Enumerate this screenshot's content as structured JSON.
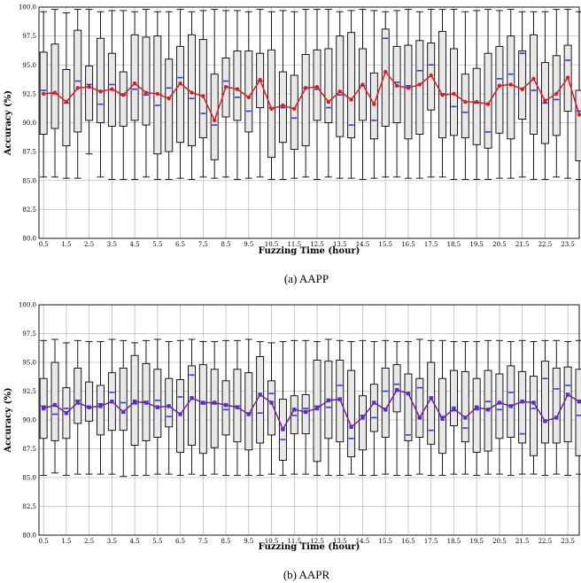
{
  "chart_data": [
    {
      "type": "box",
      "caption": "(a)  AAPP",
      "xlabel": "Fuzzing Time (hour)",
      "ylabel": "Accuracy (%)",
      "ylim": [
        80,
        100
      ],
      "yticks": [
        "80.0",
        "82.5",
        "85.0",
        "87.5",
        "90.0",
        "92.5",
        "95.0",
        "97.5",
        "100.0"
      ],
      "xtick_labels": [
        "0.5",
        "1.5",
        "2.5",
        "3.5",
        "4.5",
        "5.5",
        "6.5",
        "7.5",
        "8.5",
        "9.5",
        "10.5",
        "11.5",
        "12.5",
        "13.5",
        "14.5",
        "15.5",
        "16.5",
        "17.5",
        "18.5",
        "19.5",
        "20.5",
        "21.5",
        "22.5",
        "23.5"
      ],
      "x": [
        0.5,
        1,
        1.5,
        2,
        2.5,
        3,
        3.5,
        4,
        4.5,
        5,
        5.5,
        6,
        6.5,
        7,
        7.5,
        8,
        8.5,
        9,
        9.5,
        10,
        10.5,
        11,
        11.5,
        12,
        12.5,
        13,
        13.5,
        14,
        14.5,
        15,
        15.5,
        16,
        16.5,
        17,
        17.5,
        18,
        18.5,
        19,
        19.5,
        20,
        20.5,
        21,
        21.5,
        22,
        22.5,
        23,
        23.5,
        24
      ],
      "box_q1": [
        89.0,
        89.5,
        88.0,
        89.2,
        90.2,
        90.0,
        89.7,
        89.7,
        90.2,
        89.8,
        87.3,
        87.5,
        88.3,
        88.0,
        88.7,
        86.8,
        90.5,
        90.2,
        89.2,
        91.3,
        87.0,
        88.3,
        87.7,
        88.0,
        90.2,
        90.0,
        88.8,
        88.7,
        90.2,
        88.6,
        89.7,
        90.0,
        88.6,
        89.0,
        91.1,
        88.7,
        88.9,
        88.7,
        88.1,
        87.8,
        89.1,
        88.6,
        90.3,
        89.0,
        88.2,
        88.9,
        91.0,
        86.7
      ],
      "box_q3": [
        96.1,
        96.8,
        94.6,
        98.0,
        94.9,
        97.3,
        96.0,
        94.4,
        97.6,
        97.4,
        97.5,
        95.5,
        96.6,
        97.6,
        97.2,
        94.2,
        95.6,
        96.2,
        96.2,
        96.0,
        96.3,
        94.4,
        94.1,
        95.9,
        96.3,
        96.4,
        97.5,
        97.8,
        96.4,
        94.3,
        98.1,
        96.6,
        96.7,
        97.1,
        96.9,
        97.9,
        96.4,
        94.2,
        94.7,
        96.0,
        96.6,
        97.5,
        96.2,
        97.6,
        95.2,
        95.8,
        96.7,
        92.8
      ],
      "whisker_low": [
        85.3,
        85.3,
        85.2,
        85.2,
        87.3,
        85.3,
        85.1,
        85.1,
        85.1,
        85.3,
        85.1,
        85.1,
        85.2,
        85.1,
        85.3,
        85.2,
        85.3,
        85.1,
        85.2,
        85.3,
        85.1,
        85.1,
        85.2,
        85.3,
        85.1,
        85.3,
        85.2,
        85.2,
        85.1,
        85.2,
        85.3,
        85.3,
        85.2,
        85.2,
        85.3,
        85.3,
        85.1,
        85.1,
        85.1,
        85.1,
        85.2,
        85.2,
        85.3,
        85.1,
        85.1,
        85.3,
        85.2,
        85.1
      ],
      "whisker_high": [
        99.6,
        99.8,
        99.5,
        99.8,
        99.8,
        99.6,
        99.7,
        99.7,
        99.6,
        99.8,
        99.6,
        99.6,
        99.8,
        99.6,
        99.7,
        99.8,
        99.7,
        99.7,
        99.6,
        99.8,
        99.6,
        99.7,
        99.6,
        99.8,
        99.8,
        99.8,
        99.6,
        99.7,
        99.8,
        99.7,
        99.6,
        99.7,
        99.8,
        99.6,
        99.8,
        99.8,
        99.8,
        99.6,
        99.7,
        99.8,
        99.7,
        99.8,
        99.6,
        99.6,
        99.6,
        99.8,
        99.8,
        99.6
      ],
      "box_median": [
        92.8,
        92.5,
        91.7,
        93.6,
        93.3,
        91.6,
        93.3,
        92.4,
        92.9,
        92.4,
        91.5,
        93.0,
        93.9,
        92.1,
        90.8,
        89.8,
        93.6,
        92.2,
        91.0,
        93.6,
        91.3,
        91.3,
        90.4,
        93.0,
        92.9,
        91.3,
        92.4,
        89.8,
        93.2,
        90.2,
        97.3,
        93.5,
        93.2,
        94.5,
        95.0,
        92.5,
        91.4,
        90.9,
        91.7,
        89.2,
        93.8,
        94.2,
        96.0,
        92.8,
        91.7,
        92.0,
        95.4,
        91.0
      ],
      "mean_line": [
        92.5,
        92.6,
        91.8,
        93.0,
        93.1,
        92.7,
        92.9,
        92.4,
        93.4,
        92.6,
        92.5,
        92.1,
        93.4,
        92.6,
        92.3,
        90.2,
        93.1,
        92.9,
        92.2,
        93.7,
        91.2,
        91.5,
        91.2,
        93.0,
        93.1,
        91.8,
        92.7,
        92.0,
        93.3,
        91.6,
        94.4,
        93.2,
        93.0,
        93.3,
        94.1,
        92.4,
        92.5,
        91.8,
        91.8,
        91.6,
        93.2,
        93.3,
        92.9,
        93.8,
        91.9,
        92.5,
        93.9,
        90.7
      ],
      "colors": {
        "line": "#e31a1c",
        "median": "#1f3fff",
        "box_fill": "#e8e8e8"
      }
    },
    {
      "type": "box",
      "caption": "(b)  AAPR",
      "xlabel": "Fuzzing Time (hour)",
      "ylabel": "Accuracy (%)",
      "ylim": [
        80,
        100
      ],
      "yticks": [
        "80.0",
        "82.5",
        "85.0",
        "87.5",
        "90.0",
        "92.5",
        "95.0",
        "97.5",
        "100.0"
      ],
      "xtick_labels": [
        "0.5",
        "1.5",
        "2.5",
        "3.5",
        "4.5",
        "5.5",
        "6.5",
        "7.5",
        "8.5",
        "9.5",
        "10.5",
        "11.5",
        "12.5",
        "13.5",
        "14.5",
        "15.5",
        "16.5",
        "17.5",
        "18.5",
        "19.5",
        "20.5",
        "21.5",
        "22.5",
        "23.5"
      ],
      "x": [
        0.5,
        1,
        1.5,
        2,
        2.5,
        3,
        3.5,
        4,
        4.5,
        5,
        5.5,
        6,
        6.5,
        7,
        7.5,
        8,
        8.5,
        9,
        9.5,
        10,
        10.5,
        11,
        11.5,
        12,
        12.5,
        13,
        13.5,
        14,
        14.5,
        15,
        15.5,
        16,
        16.5,
        17,
        17.5,
        18,
        18.5,
        19,
        19.5,
        20,
        20.5,
        21,
        21.5,
        22,
        22.5,
        23,
        23.5,
        24
      ],
      "box_q1": [
        88.4,
        88.2,
        88.4,
        89.7,
        89.9,
        88.7,
        89.1,
        89.1,
        87.8,
        88.2,
        88.5,
        89.4,
        87.2,
        87.8,
        87.1,
        87.6,
        88.7,
        88.1,
        87.4,
        88.0,
        88.7,
        86.5,
        88.8,
        88.8,
        86.4,
        88.4,
        88.1,
        86.8,
        87.4,
        89.0,
        88.5,
        90.7,
        88.2,
        88.5,
        87.9,
        87.1,
        89.5,
        88.1,
        87.2,
        87.3,
        88.4,
        88.5,
        88.0,
        86.9,
        88.0,
        88.0,
        88.1,
        86.9
      ],
      "box_q3": [
        93.6,
        95.0,
        92.8,
        94.5,
        93.3,
        93.0,
        94.1,
        94.5,
        95.6,
        94.9,
        94.4,
        93.6,
        93.5,
        94.7,
        94.8,
        94.4,
        93.4,
        94.4,
        94.1,
        95.5,
        93.4,
        91.8,
        92.1,
        92.2,
        95.2,
        95.1,
        95.2,
        94.3,
        92.1,
        93.1,
        94.5,
        94.8,
        94.0,
        93.6,
        95.0,
        93.6,
        94.3,
        94.2,
        93.6,
        94.3,
        94.0,
        94.7,
        94.2,
        93.8,
        95.1,
        94.5,
        94.6,
        94.4
      ],
      "whisker_low": [
        85.2,
        85.4,
        85.2,
        85.3,
        85.3,
        85.3,
        85.3,
        85.1,
        85.2,
        85.2,
        85.3,
        85.3,
        85.2,
        85.3,
        85.2,
        85.3,
        85.2,
        85.2,
        85.2,
        85.2,
        85.3,
        85.2,
        85.3,
        85.3,
        85.2,
        85.2,
        85.2,
        85.3,
        85.2,
        85.2,
        85.3,
        85.2,
        85.2,
        85.3,
        85.2,
        85.2,
        85.3,
        85.3,
        85.2,
        85.3,
        85.3,
        85.2,
        85.3,
        85.3,
        85.2,
        85.3,
        85.2,
        85.3
      ],
      "whisker_high": [
        96.9,
        97.0,
        96.7,
        96.9,
        96.8,
        96.8,
        97.0,
        96.9,
        96.7,
        96.9,
        97.0,
        96.8,
        96.9,
        97.0,
        96.8,
        96.8,
        96.9,
        96.9,
        97.0,
        96.8,
        96.7,
        96.8,
        96.9,
        96.9,
        96.8,
        97.0,
        96.9,
        96.8,
        96.9,
        96.8,
        96.9,
        96.8,
        96.8,
        97.0,
        96.9,
        96.9,
        96.8,
        96.8,
        96.8,
        96.9,
        96.9,
        96.8,
        96.9,
        96.8,
        96.9,
        96.9,
        96.8,
        96.9
      ],
      "box_median": [
        91.2,
        90.5,
        91.0,
        91.7,
        91.1,
        91.4,
        92.4,
        91.5,
        91.4,
        91.6,
        91.7,
        90.3,
        92.0,
        93.9,
        91.4,
        91.4,
        90.9,
        91.2,
        90.6,
        90.6,
        92.3,
        88.3,
        90.4,
        91.0,
        91.2,
        91.1,
        93.0,
        88.4,
        90.4,
        90.2,
        92.5,
        93.1,
        88.7,
        92.8,
        89.1,
        90.3,
        90.8,
        89.3,
        90.9,
        91.6,
        90.9,
        92.4,
        88.8,
        91.0,
        93.6,
        92.7,
        93.0,
        90.4
      ],
      "mean_line": [
        91.0,
        91.3,
        90.6,
        91.5,
        91.1,
        91.2,
        91.6,
        90.7,
        91.6,
        91.5,
        91.1,
        91.2,
        90.5,
        91.9,
        91.5,
        91.5,
        91.3,
        91.1,
        90.5,
        92.2,
        91.5,
        89.2,
        90.9,
        90.7,
        91.0,
        91.7,
        91.8,
        89.4,
        90.2,
        91.5,
        90.9,
        92.6,
        92.3,
        90.2,
        91.9,
        90.1,
        91.0,
        90.2,
        91.1,
        90.9,
        91.5,
        91.2,
        91.6,
        91.5,
        89.9,
        90.2,
        92.2,
        91.6
      ],
      "colors": {
        "line": "#7a1fa0",
        "marker": "#5a2dd0",
        "median": "#1f3fff",
        "box_fill": "#e8e8e8"
      }
    }
  ]
}
